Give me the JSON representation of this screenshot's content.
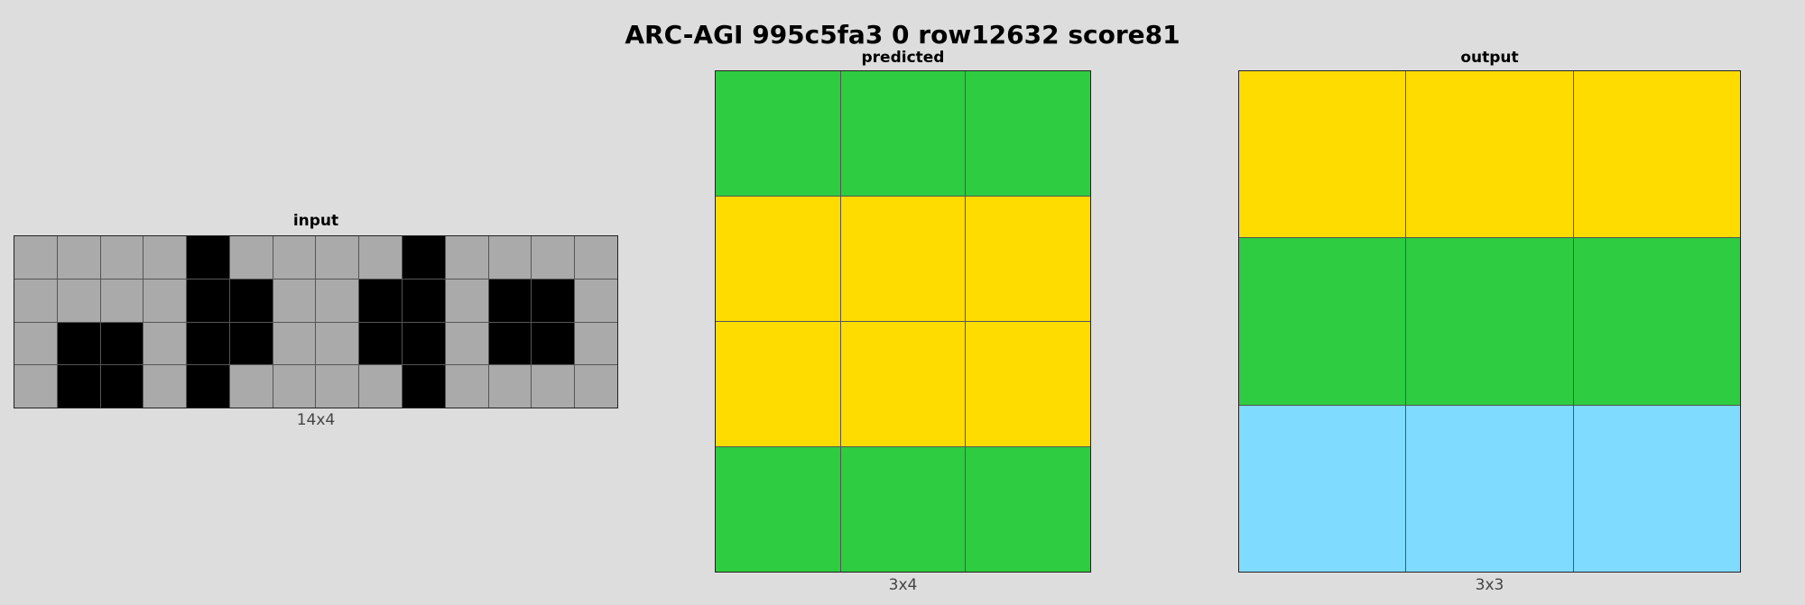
{
  "title": "ARC-AGI 995c5fa3 0 row12632 score81",
  "palette": {
    "0": "#000000",
    "3": "#2ecc40",
    "4": "#ffdc00",
    "5": "#aaaaaa",
    "8": "#7fdbff"
  },
  "panels": [
    {
      "key": "input",
      "title": "input",
      "caption": "14x4",
      "rows": [
        [
          5,
          5,
          5,
          5,
          0,
          5,
          5,
          5,
          5,
          0,
          5,
          5,
          5,
          5
        ],
        [
          5,
          5,
          5,
          5,
          0,
          0,
          5,
          5,
          0,
          0,
          5,
          0,
          0,
          5
        ],
        [
          5,
          0,
          0,
          5,
          0,
          0,
          5,
          5,
          0,
          0,
          5,
          0,
          0,
          5
        ],
        [
          5,
          0,
          0,
          5,
          0,
          5,
          5,
          5,
          5,
          0,
          5,
          5,
          5,
          5
        ]
      ]
    },
    {
      "key": "predicted",
      "title": "predicted",
      "caption": "3x4",
      "rows": [
        [
          3,
          3,
          3
        ],
        [
          4,
          4,
          4
        ],
        [
          4,
          4,
          4
        ],
        [
          3,
          3,
          3
        ]
      ]
    },
    {
      "key": "output",
      "title": "output",
      "caption": "3x3",
      "rows": [
        [
          4,
          4,
          4
        ],
        [
          3,
          3,
          3
        ],
        [
          8,
          8,
          8
        ]
      ]
    }
  ]
}
